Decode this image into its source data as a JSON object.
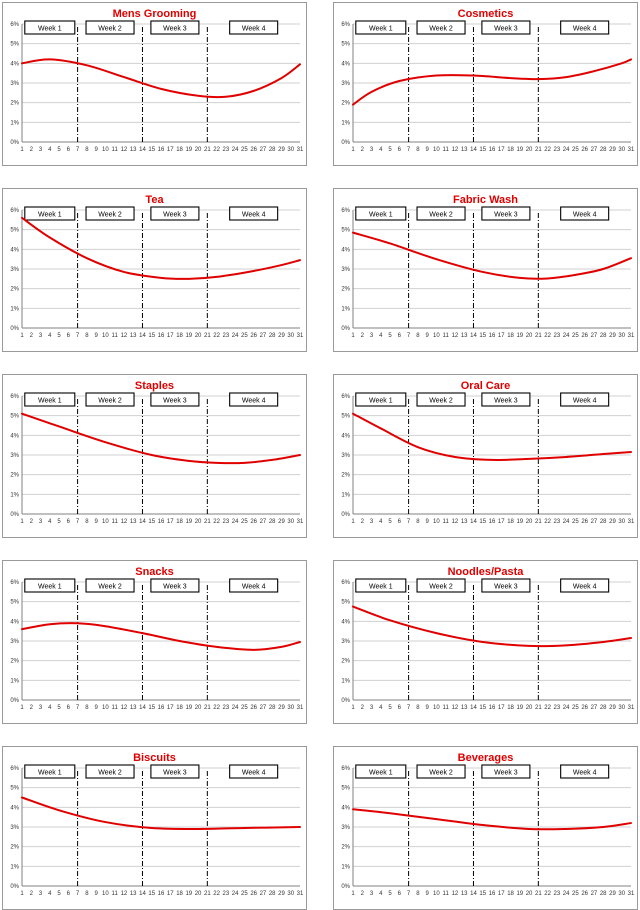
{
  "colors": {
    "line": "#e00000",
    "title": "#e00000",
    "gridline": "#d0d0d0",
    "frame": "#9a9a9a",
    "axis_text": "#333333",
    "divider": "#000000"
  },
  "shared": {
    "x_ticks": [
      "1",
      "2",
      "3",
      "4",
      "5",
      "6",
      "7",
      "8",
      "9",
      "10",
      "11",
      "12",
      "13",
      "14",
      "15",
      "16",
      "17",
      "18",
      "19",
      "20",
      "21",
      "22",
      "23",
      "24",
      "25",
      "26",
      "27",
      "28",
      "29",
      "30",
      "31"
    ],
    "y_ticks": [
      "0%",
      "1%",
      "2%",
      "3%",
      "4%",
      "5%",
      "6%"
    ],
    "ylim": [
      0,
      6
    ],
    "xlim": [
      1,
      31
    ],
    "week_labels": [
      "Week 1",
      "Week 2",
      "Week 3",
      "Week 4"
    ],
    "week_dividers": [
      7,
      14,
      21
    ],
    "grid": "horizontal"
  },
  "chart_data": [
    {
      "type": "line",
      "title": "Mens Grooming",
      "x": [
        1,
        4,
        8,
        12,
        16,
        20,
        23,
        26,
        29,
        31
      ],
      "values": [
        4.0,
        4.2,
        3.9,
        3.3,
        2.7,
        2.35,
        2.3,
        2.6,
        3.25,
        3.95
      ]
    },
    {
      "type": "line",
      "title": "Cosmetics",
      "x": [
        1,
        3,
        6,
        10,
        14,
        18,
        21,
        24,
        27,
        30,
        31
      ],
      "values": [
        1.9,
        2.55,
        3.1,
        3.38,
        3.38,
        3.25,
        3.2,
        3.3,
        3.6,
        4.0,
        4.2
      ]
    },
    {
      "type": "line",
      "title": "Tea",
      "x": [
        1,
        4,
        8,
        12,
        16,
        19,
        22,
        26,
        29,
        31
      ],
      "values": [
        5.6,
        4.6,
        3.55,
        2.85,
        2.55,
        2.5,
        2.6,
        2.9,
        3.2,
        3.45
      ]
    },
    {
      "type": "line",
      "title": "Fabric Wash",
      "x": [
        1,
        5,
        10,
        15,
        19,
        22,
        25,
        28,
        31
      ],
      "values": [
        4.85,
        4.3,
        3.5,
        2.85,
        2.55,
        2.52,
        2.7,
        3.0,
        3.55
      ]
    },
    {
      "type": "line",
      "title": "Staples",
      "x": [
        1,
        5,
        10,
        15,
        19,
        22,
        25,
        28,
        31
      ],
      "values": [
        5.1,
        4.45,
        3.65,
        3.0,
        2.7,
        2.6,
        2.6,
        2.75,
        3.0
      ]
    },
    {
      "type": "line",
      "title": "Oral Care",
      "x": [
        1,
        4,
        8,
        12,
        16,
        20,
        24,
        28,
        31
      ],
      "values": [
        5.1,
        4.35,
        3.4,
        2.9,
        2.75,
        2.8,
        2.9,
        3.05,
        3.15
      ]
    },
    {
      "type": "line",
      "title": "Snacks",
      "x": [
        1,
        4,
        7,
        10,
        14,
        18,
        22,
        26,
        29,
        31
      ],
      "values": [
        3.6,
        3.85,
        3.9,
        3.75,
        3.4,
        3.0,
        2.7,
        2.55,
        2.7,
        2.95
      ]
    },
    {
      "type": "line",
      "title": "Noodles/Pasta",
      "x": [
        1,
        5,
        10,
        15,
        20,
        24,
        28,
        31
      ],
      "values": [
        4.75,
        4.05,
        3.4,
        2.95,
        2.75,
        2.78,
        2.95,
        3.15
      ]
    },
    {
      "type": "line",
      "title": "Biscuits",
      "x": [
        1,
        5,
        10,
        15,
        20,
        25,
        31
      ],
      "values": [
        4.5,
        3.85,
        3.25,
        2.95,
        2.9,
        2.95,
        3.0
      ]
    },
    {
      "type": "line",
      "title": "Beverages",
      "x": [
        1,
        5,
        10,
        15,
        20,
        24,
        28,
        31
      ],
      "values": [
        3.9,
        3.7,
        3.4,
        3.1,
        2.9,
        2.9,
        3.0,
        3.2
      ]
    }
  ]
}
